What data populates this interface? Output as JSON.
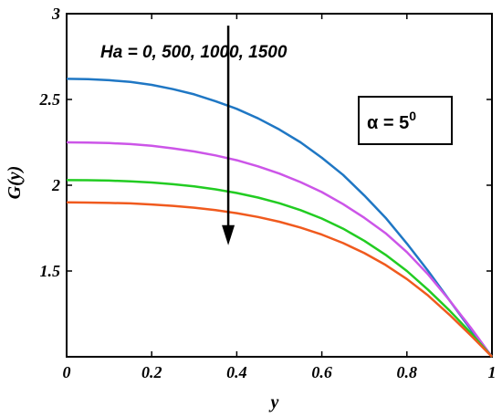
{
  "chart_data": {
    "type": "line",
    "xlabel": "y",
    "ylabel": "G(y)",
    "xlim": [
      0,
      1
    ],
    "ylim": [
      1,
      3
    ],
    "x_ticks": [
      "0",
      "0.2",
      "0.4",
      "0.6",
      "0.8",
      "1"
    ],
    "y_ticks": [
      "1.5",
      "2",
      "2.5",
      "3"
    ],
    "grid": false,
    "x": [
      0,
      0.05,
      0.1,
      0.15,
      0.2,
      0.25,
      0.3,
      0.35,
      0.4,
      0.45,
      0.5,
      0.55,
      0.6,
      0.65,
      0.7,
      0.75,
      0.8,
      0.85,
      0.9,
      0.95,
      1.0
    ],
    "series": [
      {
        "color": "#1f77c4",
        "values": [
          2.62,
          2.618,
          2.612,
          2.602,
          2.585,
          2.56,
          2.53,
          2.49,
          2.445,
          2.39,
          2.325,
          2.25,
          2.16,
          2.06,
          1.94,
          1.81,
          1.66,
          1.5,
          1.33,
          1.16,
          1.0
        ]
      },
      {
        "color": "#cc55e8",
        "values": [
          2.25,
          2.249,
          2.246,
          2.24,
          2.23,
          2.215,
          2.197,
          2.174,
          2.146,
          2.11,
          2.068,
          2.018,
          1.96,
          1.89,
          1.81,
          1.72,
          1.61,
          1.48,
          1.33,
          1.17,
          1.0
        ]
      },
      {
        "color": "#22cc22",
        "values": [
          2.03,
          2.029,
          2.027,
          2.023,
          2.016,
          2.006,
          1.993,
          1.976,
          1.955,
          1.928,
          1.895,
          1.855,
          1.806,
          1.747,
          1.676,
          1.594,
          1.5,
          1.39,
          1.27,
          1.14,
          1.0
        ]
      },
      {
        "color": "#f05a1e",
        "values": [
          1.9,
          1.899,
          1.897,
          1.894,
          1.888,
          1.88,
          1.869,
          1.855,
          1.837,
          1.815,
          1.787,
          1.753,
          1.712,
          1.663,
          1.604,
          1.535,
          1.453,
          1.357,
          1.245,
          1.125,
          1.0
        ]
      }
    ],
    "annotations": {
      "arrow_label": "Ha = 0, 500, 1000, 1500",
      "arrow_x": 0.38,
      "arrow_from_y": 2.93,
      "arrow_to_y": 1.65,
      "inset_prefix": "α = 5",
      "inset_sup": "0"
    }
  }
}
